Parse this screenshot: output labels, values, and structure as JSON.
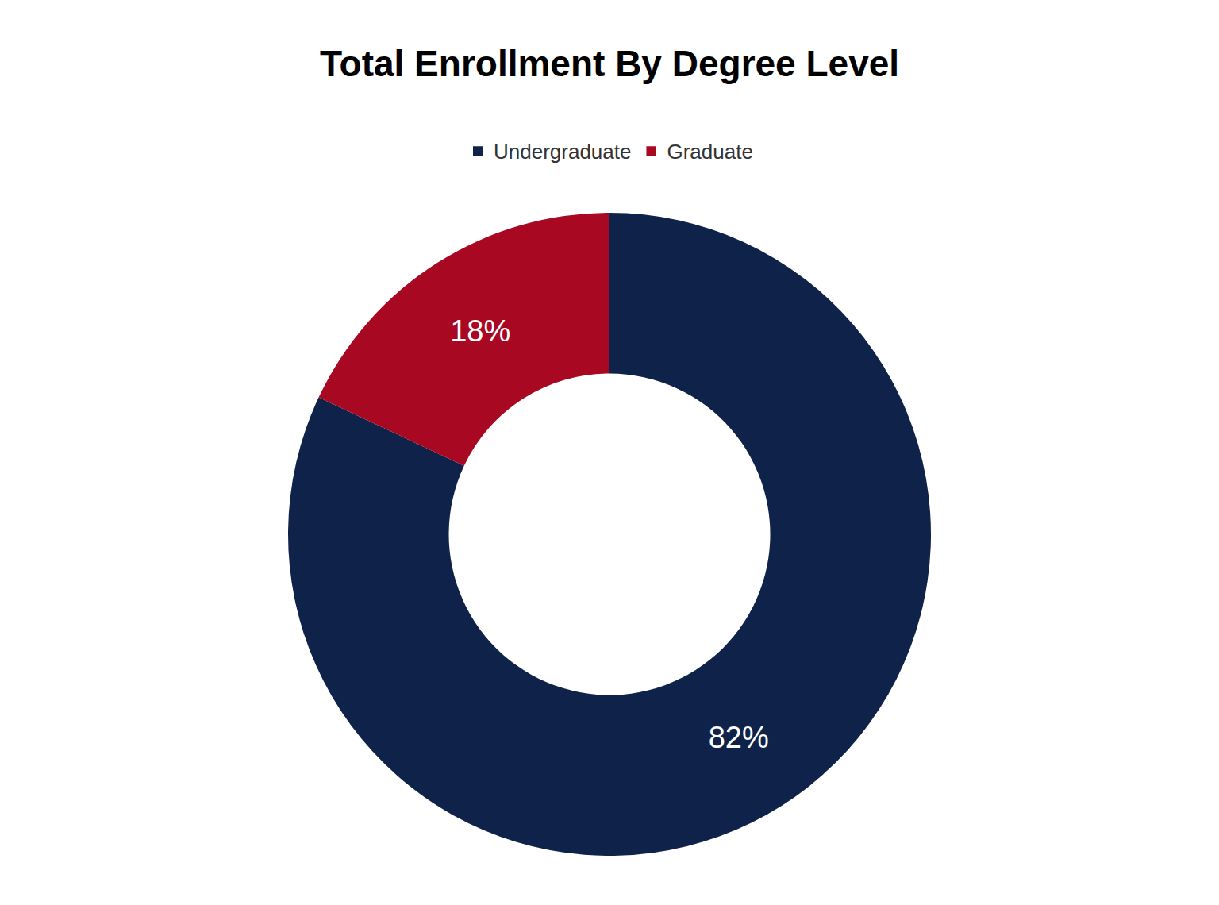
{
  "chart_data": {
    "type": "donut",
    "title": "Total Enrollment By Degree Level",
    "categories": [
      "Undergraduate",
      "Graduate"
    ],
    "values": [
      82,
      18
    ],
    "value_labels": [
      "82%",
      "18%"
    ],
    "colors": [
      "#0f2249",
      "#a80821"
    ],
    "data_labels": true,
    "legend": "top"
  }
}
